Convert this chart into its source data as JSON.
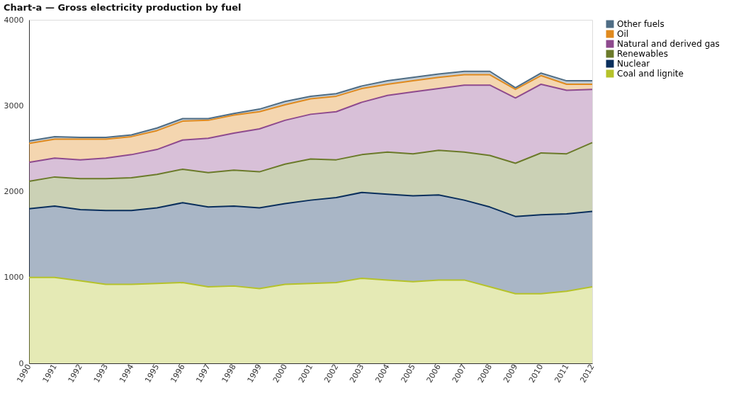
{
  "chart_data": {
    "type": "area",
    "title": "Chart-a — Gross electricity production by fuel",
    "x": [
      1990,
      1991,
      1992,
      1993,
      1994,
      1995,
      1996,
      1997,
      1998,
      1999,
      2000,
      2001,
      2002,
      2003,
      2004,
      2005,
      2006,
      2007,
      2008,
      2009,
      2010,
      2011,
      2012
    ],
    "stacked": true,
    "series": [
      {
        "name": "Coal and lignite",
        "color": "#b5c22a",
        "values": [
          1000,
          1000,
          960,
          920,
          920,
          930,
          940,
          890,
          900,
          870,
          920,
          930,
          940,
          990,
          970,
          950,
          970,
          970,
          890,
          810,
          810,
          840,
          890
        ]
      },
      {
        "name": "Nuclear",
        "color": "#0a2f5c",
        "values": [
          800,
          830,
          830,
          860,
          860,
          880,
          930,
          930,
          930,
          940,
          940,
          970,
          990,
          1000,
          1000,
          1000,
          990,
          930,
          930,
          900,
          920,
          900,
          880
        ]
      },
      {
        "name": "Renewables",
        "color": "#6b7a2a",
        "values": [
          320,
          340,
          360,
          370,
          380,
          390,
          390,
          400,
          420,
          420,
          460,
          480,
          440,
          440,
          490,
          490,
          520,
          560,
          600,
          620,
          720,
          700,
          800
        ]
      },
      {
        "name": "Natural and derived gas",
        "color": "#8e4a8e",
        "values": [
          220,
          220,
          220,
          240,
          270,
          290,
          340,
          400,
          430,
          500,
          510,
          520,
          560,
          610,
          660,
          720,
          720,
          780,
          820,
          760,
          800,
          740,
          620
        ]
      },
      {
        "name": "Oil",
        "color": "#e08a1e",
        "values": [
          220,
          220,
          240,
          220,
          210,
          220,
          220,
          210,
          210,
          200,
          180,
          180,
          180,
          160,
          130,
          130,
          130,
          120,
          120,
          100,
          100,
          70,
          60
        ]
      },
      {
        "name": "Other fuels",
        "color": "#4f6d85",
        "values": [
          30,
          30,
          20,
          20,
          20,
          30,
          30,
          20,
          20,
          30,
          40,
          30,
          30,
          30,
          40,
          40,
          40,
          40,
          40,
          20,
          30,
          40,
          40
        ]
      }
    ],
    "xlim": [
      1990,
      2012
    ],
    "xticks": [
      1990,
      1991,
      1992,
      1993,
      1994,
      1995,
      1996,
      1997,
      1998,
      1999,
      2000,
      2001,
      2002,
      2003,
      2004,
      2005,
      2006,
      2007,
      2008,
      2009,
      2010,
      2011,
      2012
    ],
    "ylim": [
      0,
      4000
    ],
    "yticks": [
      0,
      1000,
      2000,
      3000,
      4000
    ],
    "grid": false,
    "legend": "top right"
  }
}
